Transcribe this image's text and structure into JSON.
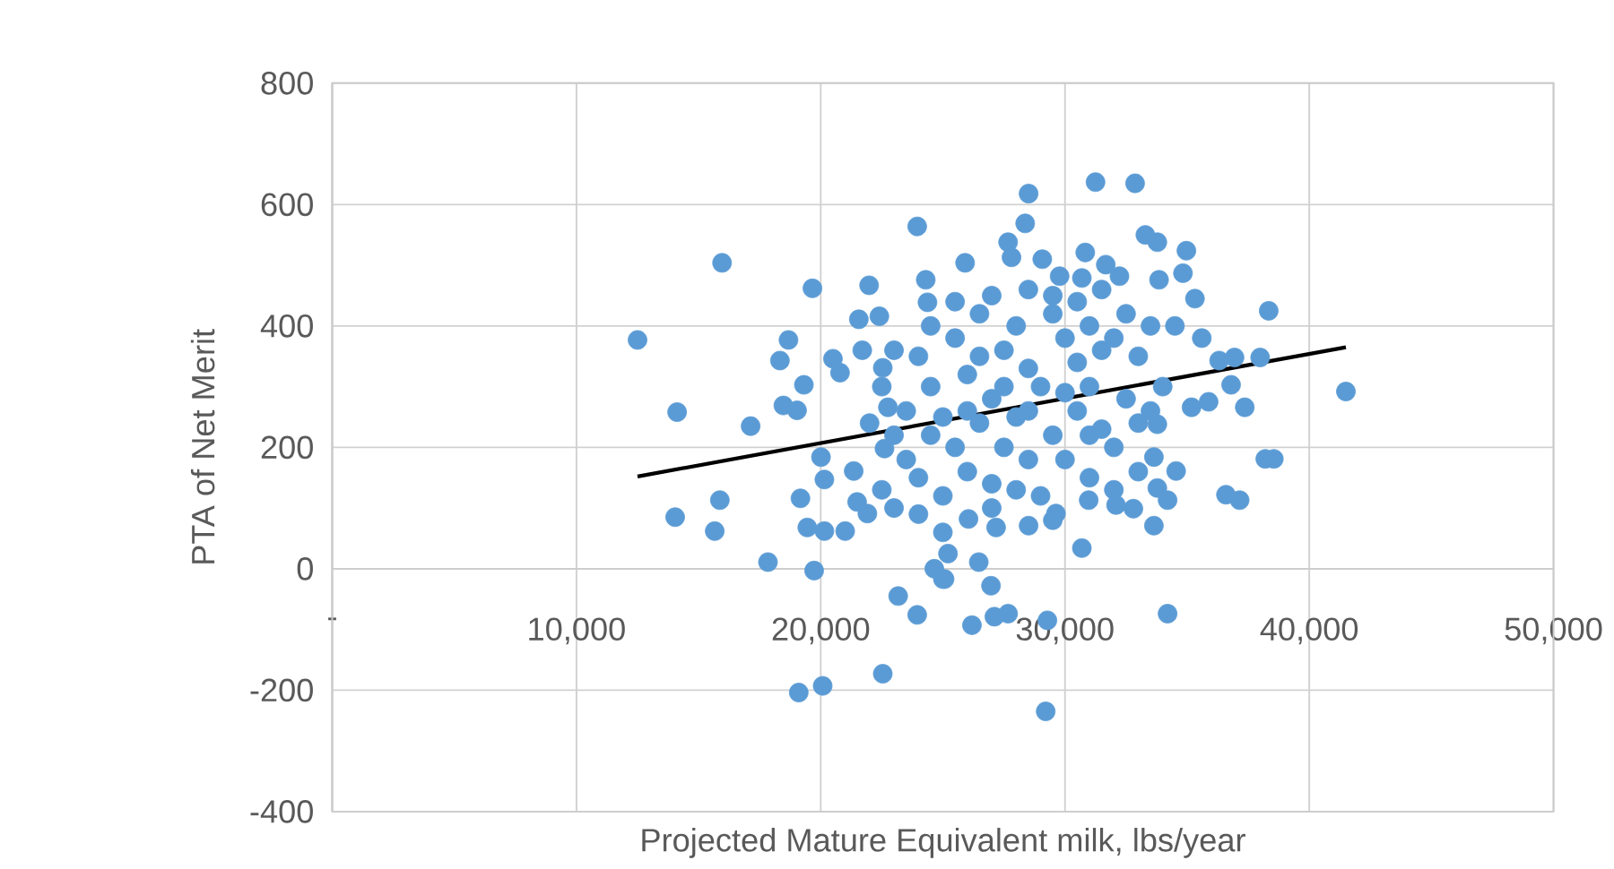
{
  "chart_data": {
    "type": "scatter",
    "xlabel": "Projected Mature Equivalent milk, lbs/year",
    "ylabel": "PTA of Net Merit",
    "xlim": [
      0,
      50000
    ],
    "ylim": [
      -400,
      800
    ],
    "xticks": [
      {
        "value": 0,
        "label": "-"
      },
      {
        "value": 10000,
        "label": "10,000"
      },
      {
        "value": 20000,
        "label": "20,000"
      },
      {
        "value": 30000,
        "label": "30,000"
      },
      {
        "value": 40000,
        "label": "40,000"
      },
      {
        "value": 50000,
        "label": "50,000"
      }
    ],
    "yticks": [
      -400,
      -200,
      0,
      200,
      400,
      600,
      800
    ],
    "grid": true,
    "marker": "circle",
    "series": [
      {
        "color": "#5b9bd5",
        "x": [
          12500,
          14120,
          14040,
          15960,
          15870,
          15660,
          17130,
          17840,
          18680,
          18330,
          18470,
          19030,
          19310,
          19660,
          19170,
          19450,
          19730,
          19100,
          20080,
          20010,
          20150,
          20500,
          20790,
          20150,
          21000,
          21490,
          21910,
          21980,
          21560,
          22400,
          21700,
          22540,
          23170,
          23950,
          22540,
          23950,
          24300,
          24370,
          22750,
          22610,
          21350,
          24650,
          25000,
          25210,
          31250,
          32870,
          28510,
          28370,
          27670,
          27810,
          29070,
          30830,
          33290,
          33780,
          34970,
          31670,
          25910,
          29780,
          30690,
          32230,
          33850,
          34830,
          35320,
          38340,
          35600,
          36310,
          36940,
          37990,
          36800,
          35180,
          35880,
          37360,
          33780,
          41500,
          38200,
          38550,
          33640,
          34550,
          36590,
          37150,
          33780,
          34200,
          33640,
          32800,
          30690,
          34200,
          29210,
          29280,
          27670,
          27110,
          26190,
          26970,
          26470,
          25070,
          26050,
          27180,
          28510,
          29630,
          30970,
          32090,
          24000,
          24500,
          25000,
          25500,
          26000,
          26500,
          27000,
          27500,
          28000,
          28500,
          29000,
          29500,
          30000,
          30500,
          31000,
          31500,
          32000,
          32500,
          33000,
          33500,
          34000,
          34500,
          23000,
          23500,
          24000,
          24500,
          25000,
          25500,
          26000,
          26500,
          27000,
          27500,
          28000,
          28500,
          29000,
          29500,
          30000,
          30500,
          31000,
          31500,
          32000,
          32500,
          33000,
          33500,
          22500,
          23000,
          23500,
          22000,
          22500,
          23000,
          24000,
          25000,
          27000,
          28000,
          29500,
          31000,
          32000,
          33000,
          28500,
          29500,
          30500,
          31500,
          26500,
          27500,
          30000,
          31000,
          28500,
          26000,
          24500,
          25500,
          27000
        ],
        "values": [
          377,
          258,
          85,
          504,
          113,
          62,
          235,
          11,
          377,
          343,
          269,
          261,
          303,
          462,
          116,
          68,
          -3,
          -204,
          -193,
          184,
          147,
          346,
          323,
          62,
          62,
          110,
          91,
          467,
          411,
          416,
          360,
          331,
          -45,
          -76,
          -173,
          564,
          476,
          439,
          266,
          198,
          161,
          0,
          -17,
          25,
          637,
          635,
          618,
          569,
          538,
          513,
          510,
          521,
          550,
          538,
          524,
          501,
          504,
          482,
          479,
          482,
          476,
          487,
          445,
          425,
          380,
          343,
          348,
          348,
          303,
          266,
          275,
          266,
          238,
          292,
          181,
          181,
          184,
          161,
          122,
          113,
          133,
          113,
          71,
          99,
          34,
          -74,
          -235,
          -85,
          -74,
          -79,
          -93,
          -28,
          11,
          -17,
          82,
          68,
          71,
          91,
          113,
          105,
          350,
          300,
          250,
          380,
          320,
          420,
          280,
          360,
          400,
          330,
          300,
          420,
          380,
          340,
          400,
          360,
          380,
          420,
          350,
          400,
          300,
          400,
          220,
          180,
          150,
          220,
          120,
          200,
          160,
          240,
          140,
          200,
          250,
          180,
          120,
          220,
          180,
          260,
          150,
          230,
          200,
          280,
          240,
          260,
          300,
          360,
          260,
          240,
          130,
          100,
          90,
          60,
          100,
          130,
          80,
          220,
          130,
          160,
          460,
          450,
          440,
          460,
          350,
          300,
          290,
          300,
          260,
          260,
          400,
          440,
          450
        ]
      },
      {
        "type": "line",
        "marker": "none",
        "color": "#000000",
        "x": [
          12500,
          41500
        ],
        "values": [
          152,
          365
        ]
      }
    ]
  }
}
